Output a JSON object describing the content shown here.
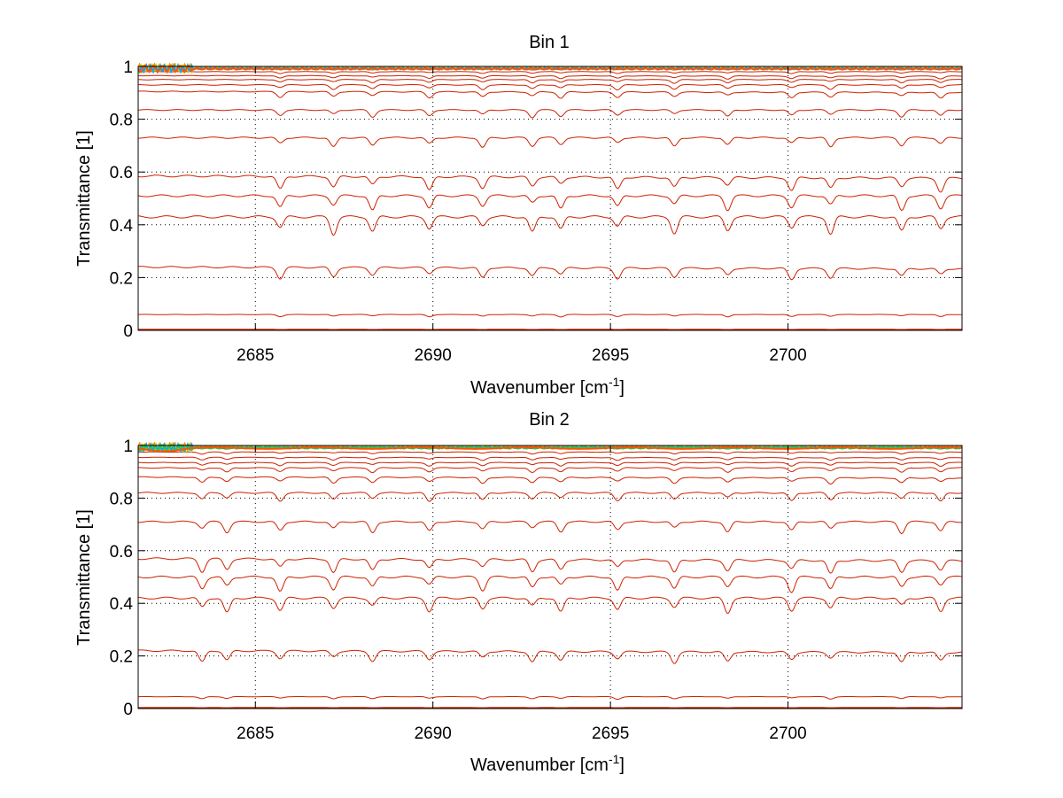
{
  "figure": {
    "background": "#ffffff"
  },
  "chart_data": [
    {
      "type": "line",
      "title": "Bin 1",
      "xlabel": "Wavenumber [cm",
      "xlabel_sup": "-1",
      "xlabel_suffix": "]",
      "ylabel": "Transmittance [1]",
      "xlim": [
        2681.7,
        2704.9
      ],
      "ylim": [
        0,
        1
      ],
      "xticks": [
        2685,
        2690,
        2695,
        2700
      ],
      "yticks": [
        0,
        0.2,
        0.4,
        0.6,
        0.8,
        1
      ],
      "ytick_labels": [
        "0",
        "0.2",
        "0.4",
        "0.6",
        "0.8",
        "1"
      ],
      "grid": "dotted",
      "line_color": "#cc2200",
      "series": [
        {
          "base": 0.0,
          "depth": 0.0
        },
        {
          "base": 0.004,
          "depth": 0.002
        },
        {
          "base": 0.06,
          "depth": 0.01
        },
        {
          "base": 0.24,
          "depth": 0.045
        },
        {
          "base": 0.43,
          "depth": 0.07
        },
        {
          "base": 0.51,
          "depth": 0.06
        },
        {
          "base": 0.585,
          "depth": 0.055
        },
        {
          "base": 0.73,
          "depth": 0.04
        },
        {
          "base": 0.835,
          "depth": 0.03
        },
        {
          "base": 0.905,
          "depth": 0.025
        },
        {
          "base": 0.93,
          "depth": 0.02
        },
        {
          "base": 0.95,
          "depth": 0.015
        },
        {
          "base": 0.965,
          "depth": 0.012
        },
        {
          "base": 0.98,
          "depth": 0.008
        },
        {
          "base": 0.99,
          "depth": 0.004
        }
      ],
      "top_band_colors": [
        "#ff8800",
        "#ffaa00",
        "#ffcc00",
        "#00aaff",
        "#ff5500"
      ],
      "absorption_lines": [
        2685.7,
        2687.2,
        2688.3,
        2689.9,
        2691.4,
        2692.8,
        2693.6,
        2695.2,
        2696.8,
        2698.3,
        2700.1,
        2701.2,
        2703.2,
        2704.3
      ]
    },
    {
      "type": "line",
      "title": "Bin 2",
      "xlabel": "Wavenumber [cm",
      "xlabel_sup": "-1",
      "xlabel_suffix": "]",
      "ylabel": "Transmittance [1]",
      "xlim": [
        2681.7,
        2704.9
      ],
      "ylim": [
        0,
        1
      ],
      "xticks": [
        2685,
        2690,
        2695,
        2700
      ],
      "yticks": [
        0,
        0.2,
        0.4,
        0.6,
        0.8,
        1
      ],
      "ytick_labels": [
        "0",
        "0.2",
        "0.4",
        "0.6",
        "0.8",
        "1"
      ],
      "grid": "dotted",
      "line_color": "#cc2200",
      "series": [
        {
          "base": 0.0,
          "depth": 0.0
        },
        {
          "base": 0.004,
          "depth": 0.002
        },
        {
          "base": 0.045,
          "depth": 0.01
        },
        {
          "base": 0.22,
          "depth": 0.045
        },
        {
          "base": 0.42,
          "depth": 0.06
        },
        {
          "base": 0.5,
          "depth": 0.06
        },
        {
          "base": 0.57,
          "depth": 0.055
        },
        {
          "base": 0.71,
          "depth": 0.045
        },
        {
          "base": 0.82,
          "depth": 0.035
        },
        {
          "base": 0.88,
          "depth": 0.025
        },
        {
          "base": 0.915,
          "depth": 0.02
        },
        {
          "base": 0.935,
          "depth": 0.015
        },
        {
          "base": 0.955,
          "depth": 0.012
        },
        {
          "base": 0.975,
          "depth": 0.008
        },
        {
          "base": 0.99,
          "depth": 0.004
        }
      ],
      "top_band_colors": [
        "#ff8800",
        "#ffaa00",
        "#ffcc00",
        "#00aaff",
        "#33cc33",
        "#ff5500"
      ],
      "absorption_lines": [
        2683.5,
        2684.2,
        2685.7,
        2687.2,
        2688.3,
        2689.9,
        2691.4,
        2692.8,
        2693.6,
        2695.2,
        2696.8,
        2698.3,
        2700.1,
        2701.2,
        2703.2,
        2704.3
      ]
    }
  ]
}
